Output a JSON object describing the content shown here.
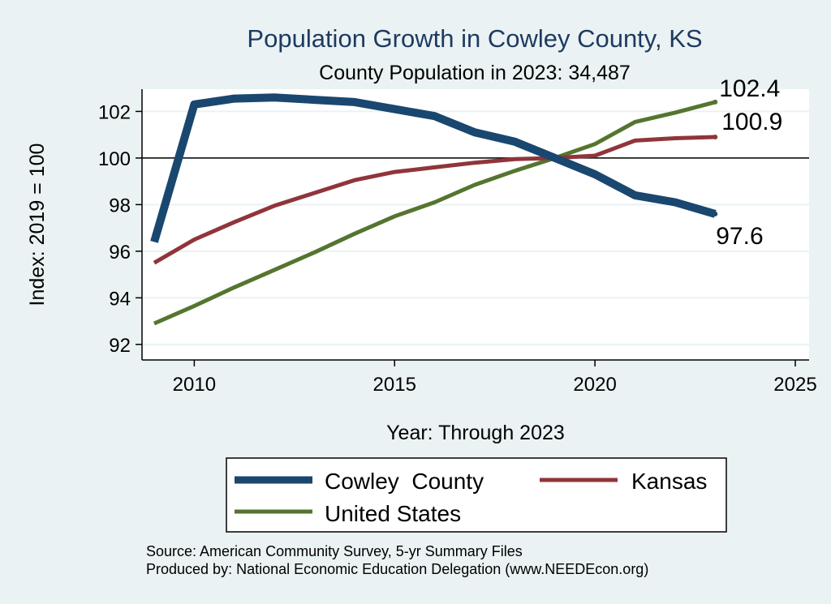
{
  "chart_data": {
    "type": "line",
    "title": "Population Growth in Cowley County, KS",
    "subtitle": "County Population in 2023: 34,487",
    "xlabel": "Year: Through 2023",
    "ylabel": "Index: 2019 = 100",
    "xlim": [
      2009,
      2025
    ],
    "ylim": [
      91.5,
      103.2
    ],
    "xticks": [
      2010,
      2015,
      2020,
      2025
    ],
    "yticks": [
      92,
      94,
      96,
      98,
      100,
      102
    ],
    "reference_line": 100,
    "grid": true,
    "legend_placement": "bottom",
    "x": [
      2009,
      2010,
      2011,
      2012,
      2013,
      2014,
      2015,
      2016,
      2017,
      2018,
      2019,
      2020,
      2021,
      2022,
      2023
    ],
    "series": [
      {
        "name": "Cowley  County",
        "color": "#1a476f",
        "values": [
          96.4,
          102.3,
          102.55,
          102.6,
          102.5,
          102.4,
          102.1,
          101.8,
          101.1,
          100.7,
          100.0,
          99.3,
          98.4,
          98.1,
          97.6
        ],
        "end_label": "97.6"
      },
      {
        "name": "Kansas",
        "color": "#90353b",
        "values": [
          95.5,
          96.5,
          97.25,
          97.95,
          98.5,
          99.05,
          99.4,
          99.6,
          99.8,
          99.95,
          100.0,
          100.1,
          100.75,
          100.85,
          100.9
        ],
        "end_label": "100.9"
      },
      {
        "name": "United States",
        "color": "#55752f",
        "values": [
          92.9,
          93.65,
          94.45,
          95.2,
          95.95,
          96.75,
          97.5,
          98.1,
          98.85,
          99.45,
          100.0,
          100.6,
          101.55,
          101.95,
          102.4
        ],
        "end_label": "102.4"
      }
    ],
    "source_lines": [
      "Source: American Community Survey, 5-yr Summary Files",
      "Produced by: National Economic Education Delegation (www.NEEDEcon.org)"
    ]
  }
}
